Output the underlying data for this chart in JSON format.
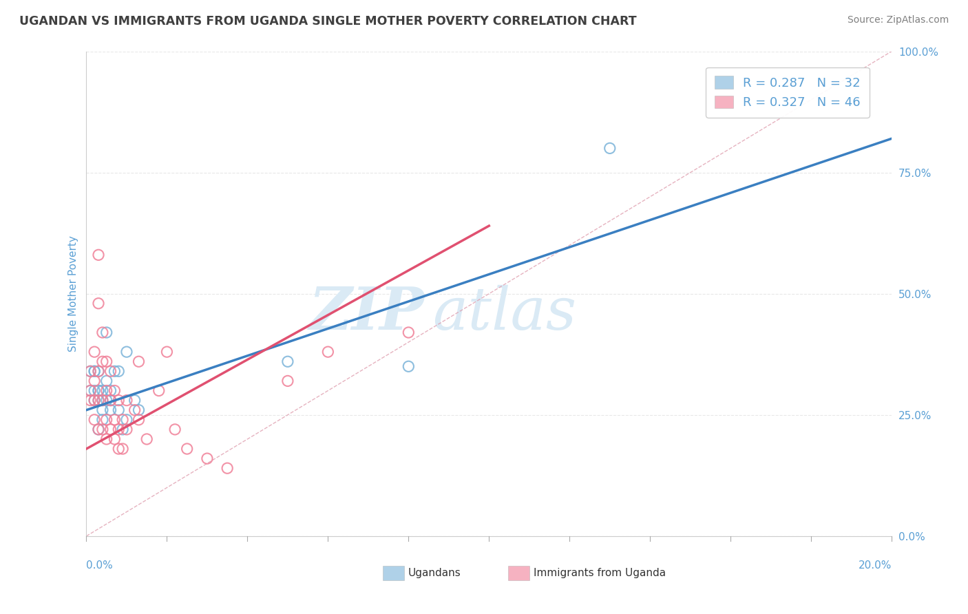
{
  "title": "UGANDAN VS IMMIGRANTS FROM UGANDA SINGLE MOTHER POVERTY CORRELATION CHART",
  "source": "Source: ZipAtlas.com",
  "ylabel": "Single Mother Poverty",
  "yticks": [
    "0.0%",
    "25.0%",
    "50.0%",
    "75.0%",
    "100.0%"
  ],
  "ytick_vals": [
    0.0,
    0.25,
    0.5,
    0.75,
    1.0
  ],
  "xlim": [
    0.0,
    0.2
  ],
  "ylim": [
    0.0,
    1.0
  ],
  "ugandans_color": "#7ab3d9",
  "immigrants_color": "#f08098",
  "trend_ugandans_color": "#3a7fc1",
  "trend_immigrants_color": "#e05070",
  "diag_color": "#e0a0b0",
  "watermark_color": "#daeaf5",
  "background_color": "#ffffff",
  "grid_color": "#e8e8e8",
  "axis_color": "#5a9fd4",
  "title_color": "#404040",
  "source_color": "#808080",
  "ugandans_scatter_x": [
    0.001,
    0.001,
    0.002,
    0.002,
    0.002,
    0.002,
    0.003,
    0.003,
    0.003,
    0.003,
    0.003,
    0.004,
    0.004,
    0.004,
    0.004,
    0.005,
    0.005,
    0.005,
    0.006,
    0.006,
    0.006,
    0.007,
    0.008,
    0.008,
    0.009,
    0.01,
    0.01,
    0.012,
    0.013,
    0.05,
    0.08,
    0.13
  ],
  "ugandans_scatter_y": [
    0.34,
    0.3,
    0.34,
    0.3,
    0.34,
    0.28,
    0.34,
    0.3,
    0.28,
    0.22,
    0.3,
    0.3,
    0.28,
    0.26,
    0.24,
    0.42,
    0.32,
    0.28,
    0.3,
    0.28,
    0.26,
    0.34,
    0.34,
    0.26,
    0.22,
    0.38,
    0.24,
    0.28,
    0.26,
    0.36,
    0.35,
    0.8
  ],
  "immigrants_scatter_x": [
    0.001,
    0.001,
    0.001,
    0.002,
    0.002,
    0.002,
    0.002,
    0.003,
    0.003,
    0.003,
    0.003,
    0.003,
    0.004,
    0.004,
    0.004,
    0.004,
    0.005,
    0.005,
    0.005,
    0.005,
    0.006,
    0.006,
    0.006,
    0.007,
    0.007,
    0.007,
    0.008,
    0.008,
    0.008,
    0.009,
    0.009,
    0.01,
    0.01,
    0.012,
    0.013,
    0.013,
    0.015,
    0.018,
    0.02,
    0.022,
    0.025,
    0.03,
    0.035,
    0.05,
    0.06,
    0.08
  ],
  "immigrants_scatter_y": [
    0.34,
    0.3,
    0.28,
    0.38,
    0.32,
    0.28,
    0.24,
    0.58,
    0.48,
    0.34,
    0.28,
    0.22,
    0.42,
    0.36,
    0.28,
    0.22,
    0.36,
    0.3,
    0.24,
    0.2,
    0.34,
    0.28,
    0.22,
    0.3,
    0.24,
    0.2,
    0.28,
    0.22,
    0.18,
    0.24,
    0.18,
    0.28,
    0.22,
    0.26,
    0.36,
    0.24,
    0.2,
    0.3,
    0.38,
    0.22,
    0.18,
    0.16,
    0.14,
    0.32,
    0.38,
    0.42
  ],
  "trend_ug_x0": 0.0,
  "trend_ug_y0": 0.26,
  "trend_ug_x1": 0.2,
  "trend_ug_y1": 0.82,
  "trend_im_x0": 0.0,
  "trend_im_y0": 0.18,
  "trend_im_x1": 0.1,
  "trend_im_y1": 0.64
}
